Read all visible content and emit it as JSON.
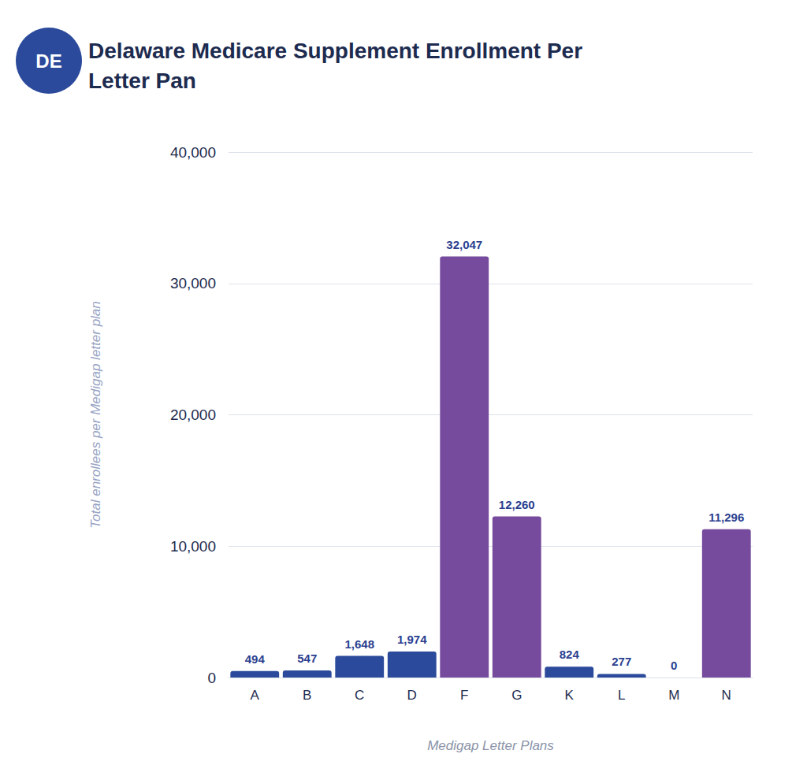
{
  "chart_data": {
    "type": "bar",
    "title": "Delaware Medicare Supplement Enrollment Per Letter Pan",
    "annotations": [
      "DE"
    ],
    "x_label": "Medigap Letter Plans",
    "y_label": "Total enrollees per Medigap letter plan",
    "categories": [
      "A",
      "B",
      "C",
      "D",
      "F",
      "G",
      "K",
      "L",
      "M",
      "N"
    ],
    "values": [
      494,
      547,
      1648,
      1974,
      32047,
      12260,
      824,
      277,
      0,
      11296
    ],
    "value_labels": [
      "494",
      "547",
      "1,648",
      "1,974",
      "32,047",
      "12,260",
      "824",
      "277",
      "0",
      "11,296"
    ],
    "colors": [
      "#2b4a9b",
      "#2b4a9b",
      "#2b4a9b",
      "#2b4a9b",
      "#764a9c",
      "#764a9c",
      "#2b4a9b",
      "#2b4a9b",
      "#2b4a9b",
      "#764a9c"
    ],
    "ylim": [
      0,
      40000
    ],
    "yticks": [
      0,
      {
        "value": 10000,
        "label": "10,000"
      },
      {
        "value": 20000,
        "label": "20,000"
      },
      {
        "value": 30000,
        "label": "30,000"
      },
      {
        "value": 40000,
        "label": "40,000"
      }
    ],
    "grid": true,
    "data_labels": true
  }
}
